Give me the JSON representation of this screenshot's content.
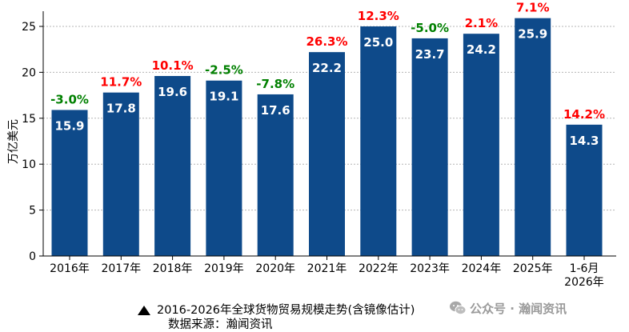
{
  "chart_data": {
    "type": "bar",
    "ylabel": "万亿美元",
    "ylim": [
      0,
      25
    ],
    "yticks": [
      "0",
      "5",
      "10",
      "15",
      "20",
      "25"
    ],
    "grid": "horizontal dotted",
    "categories": [
      "2016年",
      "2017年",
      "2018年",
      "2019年",
      "2020年",
      "2021年",
      "2022年",
      "2023年",
      "2024年",
      "2025年",
      "1-6月\n2026年"
    ],
    "values": [
      15.9,
      17.8,
      19.6,
      19.1,
      17.6,
      22.2,
      25.0,
      23.7,
      24.2,
      25.9,
      14.3
    ],
    "value_labels": [
      "15.9",
      "17.8",
      "19.6",
      "19.1",
      "17.6",
      "22.2",
      "25.0",
      "23.7",
      "24.2",
      "25.9",
      "14.3"
    ],
    "growth_labels": [
      "-3.0%",
      "11.7%",
      "10.1%",
      "-2.5%",
      "-7.8%",
      "26.3%",
      "12.3%",
      "-5.0%",
      "2.1%",
      "7.1%",
      "14.2%"
    ],
    "colors": {
      "bar": "#0e4a8a",
      "positive": "#ff0000",
      "negative": "#008000"
    }
  },
  "caption": {
    "icon": "triangle-icon",
    "title": "2016-2026年全球货物贸易规模走势(含镜像估计)",
    "source": "数据来源：瀚闻资讯"
  },
  "watermark": {
    "icon": "wechat-icon",
    "text": "公众号 · 瀚闻资讯"
  }
}
